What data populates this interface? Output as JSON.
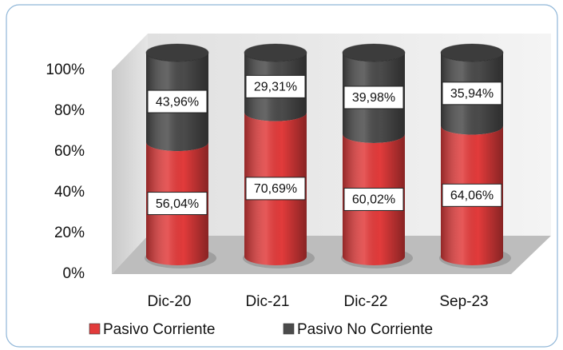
{
  "chart_data": {
    "type": "bar3d_stacked",
    "categories": [
      "Dic-20",
      "Dic-21",
      "Dic-22",
      "Sep-23"
    ],
    "series": [
      {
        "name": "Pasivo Corriente",
        "color": "#e23b3b",
        "values": [
          56.04,
          70.69,
          60.02,
          64.06
        ],
        "value_labels": [
          "56,04%",
          "70,69%",
          "60,02%",
          "64,06%"
        ]
      },
      {
        "name": "Pasivo No Corriente",
        "color": "#4b4b4b",
        "values": [
          43.96,
          29.31,
          39.98,
          35.94
        ],
        "value_labels": [
          "43,96%",
          "29,31%",
          "39,98%",
          "35,94%"
        ]
      }
    ],
    "ylim": [
      0,
      100
    ],
    "yticks": [
      {
        "value": 0,
        "label": "0%"
      },
      {
        "value": 20,
        "label": "20%"
      },
      {
        "value": 40,
        "label": "40%"
      },
      {
        "value": 60,
        "label": "60%"
      },
      {
        "value": 80,
        "label": "80%"
      },
      {
        "value": 100,
        "label": "100%"
      }
    ],
    "legend": "bottom"
  }
}
